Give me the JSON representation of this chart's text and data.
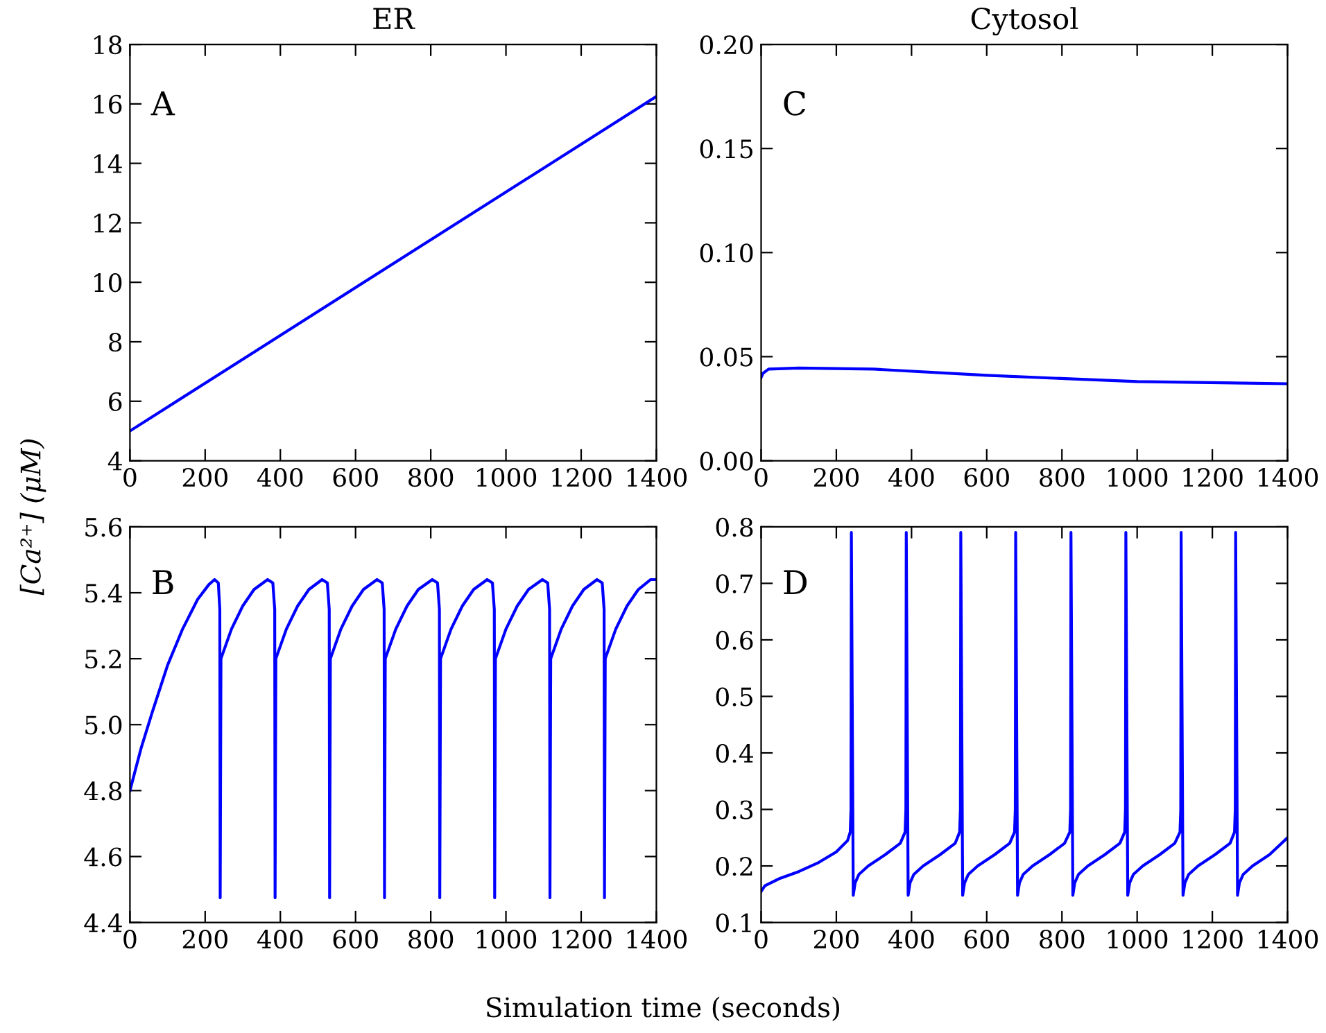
{
  "chart_data": [
    {
      "type": "line",
      "title": "ER",
      "ylabel": "[Ca²⁺] (μM)",
      "annotations": [
        "A"
      ],
      "xlim": [
        0,
        1400
      ],
      "xticks": [
        0,
        200,
        400,
        600,
        800,
        1000,
        1200,
        1400
      ],
      "ylim": [
        4,
        18
      ],
      "yticks": [
        4,
        6,
        8,
        10,
        12,
        14,
        16,
        18
      ],
      "grid": false,
      "series": [
        {
          "color": "#0000ff",
          "x": [
            0,
            1400
          ],
          "values": [
            5.0,
            16.25
          ]
        }
      ]
    },
    {
      "type": "line",
      "annotations": [
        "B"
      ],
      "xlim": [
        0,
        1400
      ],
      "xticks": [
        0,
        200,
        400,
        600,
        800,
        1000,
        1200,
        1400
      ],
      "ylim": [
        4.4,
        5.6
      ],
      "yticks": [
        4.4,
        4.6,
        4.8,
        {
          "value": 5,
          "label": "5.0"
        },
        5.2,
        5.4,
        5.6
      ],
      "grid": false,
      "series": [
        {
          "color": "#0000ff",
          "x": [
            0,
            30,
            60,
            100,
            140,
            180,
            210,
            225,
            235,
            239,
            240,
            242,
            270,
            300,
            330,
            366,
            380,
            385,
            386,
            388,
            416,
            446,
            476,
            511,
            525,
            530,
            531,
            533,
            561,
            591,
            621,
            657,
            671,
            676,
            677,
            679,
            707,
            737,
            767,
            804,
            818,
            823,
            824,
            826,
            854,
            884,
            914,
            950,
            964,
            969,
            970,
            972,
            1000,
            1030,
            1060,
            1097,
            1111,
            1116,
            1117,
            1119,
            1147,
            1177,
            1207,
            1242,
            1256,
            1261,
            1262,
            1264,
            1292,
            1322,
            1352,
            1385,
            1400
          ],
          "values": [
            4.8,
            4.93,
            5.04,
            5.18,
            5.29,
            5.38,
            5.425,
            5.44,
            5.43,
            5.35,
            4.475,
            5.2,
            5.29,
            5.36,
            5.41,
            5.44,
            5.43,
            5.35,
            4.475,
            5.2,
            5.29,
            5.36,
            5.41,
            5.44,
            5.43,
            5.35,
            4.475,
            5.2,
            5.29,
            5.36,
            5.41,
            5.44,
            5.43,
            5.35,
            4.475,
            5.2,
            5.29,
            5.36,
            5.41,
            5.44,
            5.43,
            5.35,
            4.475,
            5.2,
            5.29,
            5.36,
            5.41,
            5.44,
            5.43,
            5.35,
            4.475,
            5.2,
            5.29,
            5.36,
            5.41,
            5.44,
            5.43,
            5.35,
            4.475,
            5.2,
            5.29,
            5.36,
            5.41,
            5.44,
            5.43,
            5.35,
            4.475,
            5.2,
            5.29,
            5.36,
            5.41,
            5.44,
            5.44
          ]
        }
      ]
    },
    {
      "type": "line",
      "title": "Cytosol",
      "annotations": [
        "C"
      ],
      "xlim": [
        0,
        1400
      ],
      "xticks": [
        0,
        200,
        400,
        600,
        800,
        1000,
        1200,
        1400
      ],
      "ylim": [
        0,
        0.2
      ],
      "yticks": [
        {
          "value": 0,
          "label": "0.00"
        },
        {
          "value": 0.05,
          "label": "0.05"
        },
        {
          "value": 0.1,
          "label": "0.10"
        },
        {
          "value": 0.15,
          "label": "0.15"
        },
        {
          "value": 0.2,
          "label": "0.20"
        }
      ],
      "grid": false,
      "series": [
        {
          "color": "#0000ff",
          "x": [
            0,
            5,
            20,
            100,
            300,
            600,
            1000,
            1400
          ],
          "values": [
            0.04,
            0.042,
            0.044,
            0.0445,
            0.044,
            0.041,
            0.038,
            0.037
          ]
        }
      ]
    },
    {
      "type": "line",
      "annotations": [
        "D"
      ],
      "xlabel": "Simulation time (seconds)",
      "xlim": [
        0,
        1400
      ],
      "xticks": [
        0,
        200,
        400,
        600,
        800,
        1000,
        1200,
        1400
      ],
      "ylim": [
        0.1,
        0.8
      ],
      "yticks": [
        0.1,
        0.2,
        0.3,
        0.4,
        0.5,
        0.6,
        0.7,
        0.8
      ],
      "grid": false,
      "series": [
        {
          "color": "#0000ff",
          "x": [
            0,
            10,
            50,
            100,
            150,
            200,
            230,
            237,
            239,
            240,
            245,
            250,
            260,
            285,
            330,
            370,
            383,
            385,
            386,
            391,
            396,
            406,
            431,
            476,
            516,
            528,
            530,
            531,
            536,
            541,
            551,
            576,
            621,
            661,
            674,
            676,
            677,
            682,
            687,
            697,
            722,
            767,
            807,
            821,
            823,
            824,
            829,
            834,
            844,
            869,
            914,
            954,
            967,
            969,
            970,
            975,
            980,
            990,
            1015,
            1060,
            1100,
            1114,
            1116,
            1117,
            1122,
            1127,
            1137,
            1162,
            1207,
            1247,
            1259,
            1261,
            1262,
            1267,
            1272,
            1282,
            1307,
            1352,
            1400
          ],
          "values": [
            0.155,
            0.165,
            0.178,
            0.19,
            0.205,
            0.225,
            0.245,
            0.26,
            0.3,
            0.79,
            0.148,
            0.17,
            0.185,
            0.2,
            0.22,
            0.24,
            0.26,
            0.3,
            0.79,
            0.148,
            0.17,
            0.185,
            0.2,
            0.22,
            0.24,
            0.26,
            0.3,
            0.79,
            0.148,
            0.17,
            0.185,
            0.2,
            0.22,
            0.24,
            0.26,
            0.3,
            0.79,
            0.148,
            0.17,
            0.185,
            0.2,
            0.22,
            0.24,
            0.26,
            0.3,
            0.79,
            0.148,
            0.17,
            0.185,
            0.2,
            0.22,
            0.24,
            0.26,
            0.3,
            0.79,
            0.148,
            0.17,
            0.185,
            0.2,
            0.22,
            0.24,
            0.26,
            0.3,
            0.79,
            0.148,
            0.17,
            0.185,
            0.2,
            0.22,
            0.24,
            0.26,
            0.3,
            0.79,
            0.148,
            0.17,
            0.185,
            0.2,
            0.22,
            0.25
          ]
        }
      ]
    }
  ]
}
